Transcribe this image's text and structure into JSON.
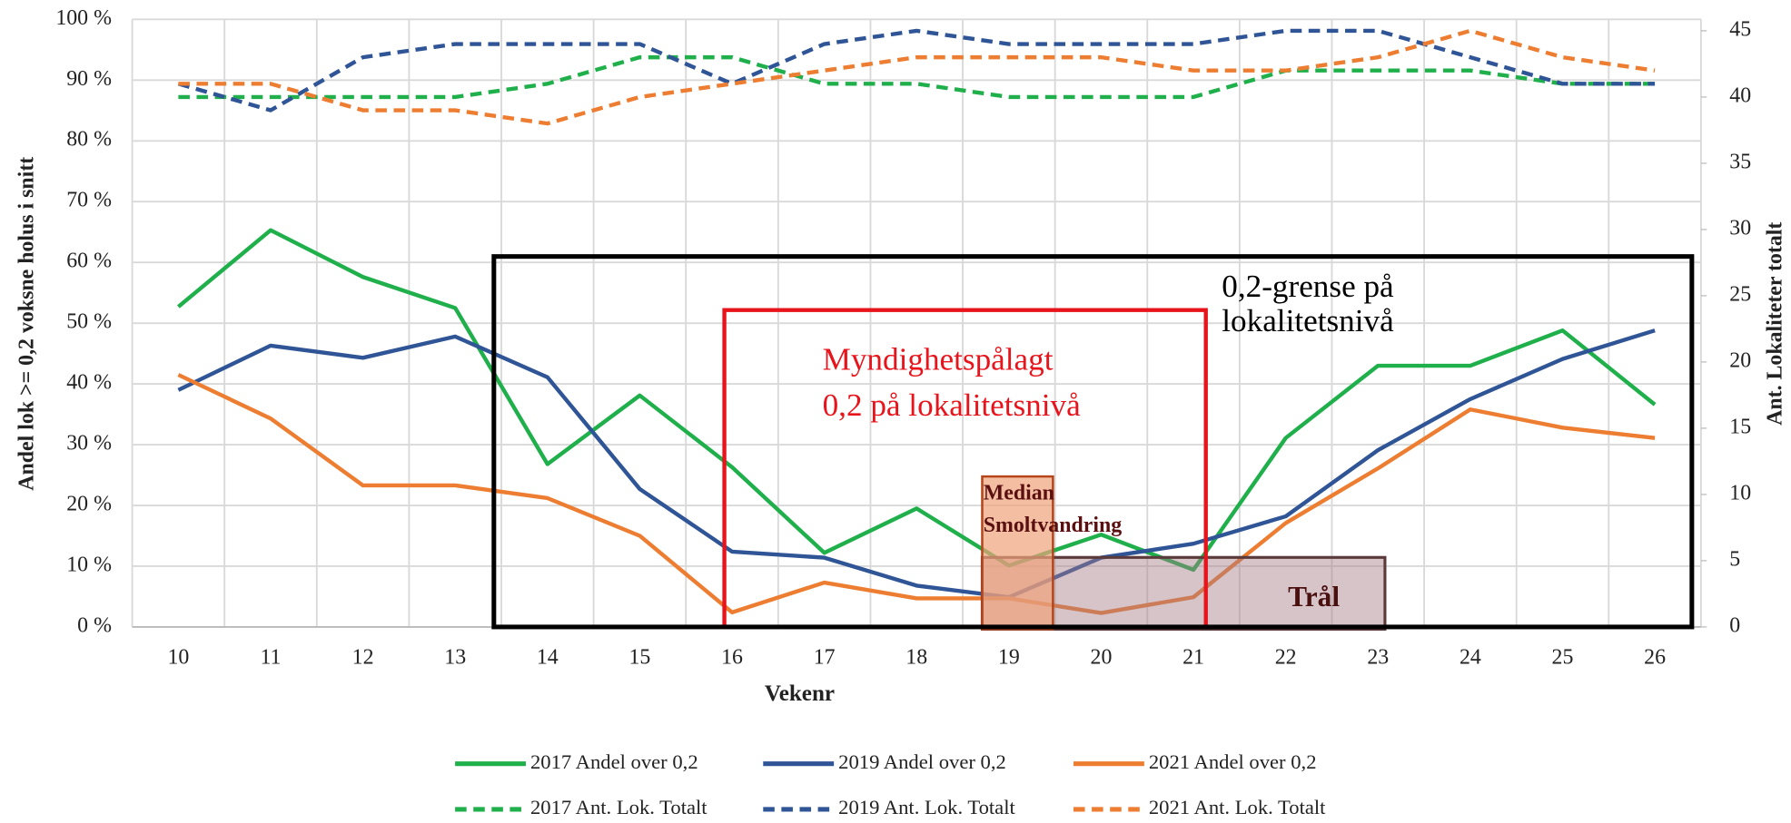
{
  "chart_data": {
    "type": "line",
    "x_label": "Vekenr",
    "y_label": "Andel lok >= 0,2 voksne holus i snitt",
    "y2_label": "Ant. Lokaliteter totalt",
    "categories": [
      10,
      11,
      12,
      13,
      14,
      15,
      16,
      17,
      18,
      19,
      20,
      21,
      22,
      23,
      24,
      25,
      26
    ],
    "ylim": [
      0,
      100
    ],
    "yticks": [
      {
        "value": 0,
        "label": "0 %"
      },
      {
        "value": 10,
        "label": "10 %"
      },
      {
        "value": 20,
        "label": "20 %"
      },
      {
        "value": 30,
        "label": "30 %"
      },
      {
        "value": 40,
        "label": "40 %"
      },
      {
        "value": 50,
        "label": "50 %"
      },
      {
        "value": 60,
        "label": "60 %"
      },
      {
        "value": 70,
        "label": "70 %"
      },
      {
        "value": 80,
        "label": "80 %"
      },
      {
        "value": 90,
        "label": "90 %"
      },
      {
        "value": 100,
        "label": "100 %"
      }
    ],
    "y2lim": [
      0,
      45
    ],
    "y2ticks": [
      0,
      5,
      10,
      15,
      20,
      25,
      30,
      35,
      40,
      45
    ],
    "grid": true,
    "legend": "bottom",
    "series": [
      {
        "name": "2017 Andel over 0,2",
        "color": "#1fb04b",
        "dash": false,
        "values": [
          52.7,
          65.3,
          57.6,
          52.5,
          26.8,
          38.1,
          26.3,
          12.2,
          19.5,
          10.1,
          15.2,
          9.4,
          31.1,
          43,
          43,
          48.8,
          36.6
        ]
      },
      {
        "name": "2019 Andel over 0,2",
        "color": "#2f5597",
        "dash": false,
        "values": [
          39,
          46.3,
          44.3,
          47.8,
          41.1,
          22.7,
          12.4,
          11.4,
          6.8,
          4.9,
          11.4,
          13.7,
          18.2,
          29.1,
          37.5,
          44.1,
          48.8
        ]
      },
      {
        "name": "2021 Andel over 0,2",
        "color": "#ed7d31",
        "dash": false,
        "values": [
          41.5,
          34.3,
          23.3,
          23.3,
          21.2,
          15,
          2.4,
          7.3,
          4.7,
          4.7,
          2.3,
          4.9,
          17.1,
          26.1,
          35.8,
          32.8,
          31.1
        ]
      },
      {
        "name": "2017 Ant. Lok. Totalt",
        "color": "#1fb04b",
        "dash": true,
        "axis": "y2",
        "values": [
          40,
          40,
          40,
          40,
          41,
          43,
          43,
          41,
          41,
          40,
          40,
          40,
          42,
          42,
          42,
          41,
          41
        ]
      },
      {
        "name": "2019 Ant. Lok. Totalt",
        "color": "#2f5597",
        "dash": true,
        "axis": "y2",
        "values": [
          41,
          39,
          43,
          44,
          44,
          44,
          41,
          44,
          45,
          44,
          44,
          44,
          45,
          45,
          43,
          41,
          41
        ]
      },
      {
        "name": "2021 Ant. Lok. Totalt",
        "color": "#ed7d31",
        "dash": true,
        "axis": "y2",
        "values": [
          41,
          41,
          39,
          39,
          38,
          40,
          41,
          42,
          43,
          43,
          43,
          42,
          42,
          43,
          45,
          43,
          42
        ]
      }
    ],
    "annotations": [
      {
        "lines": [
          "0,2-grense på",
          "lokalitetsnivå"
        ]
      },
      {
        "lines": [
          "Myndighetspålagt",
          "0,2 på lokalitetsnivå"
        ]
      },
      {
        "lines": [
          "Median",
          "Smoltvandring"
        ]
      },
      {
        "lines": [
          "Trål"
        ]
      }
    ]
  }
}
